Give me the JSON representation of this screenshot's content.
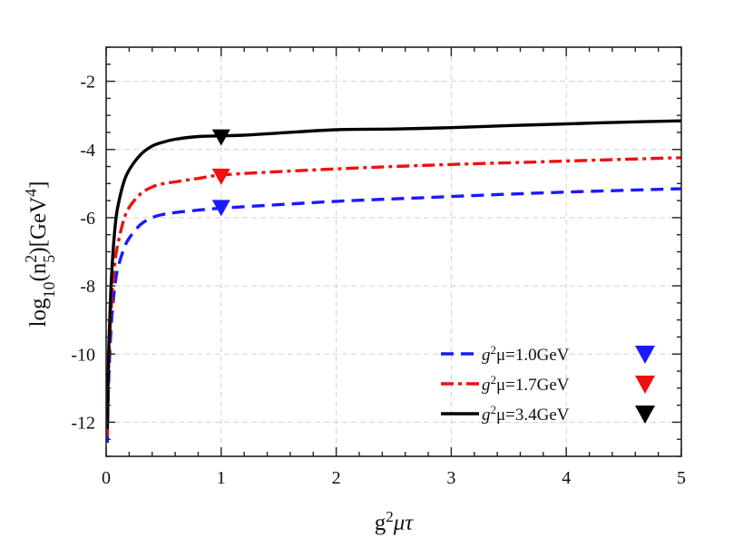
{
  "chart_data": {
    "type": "line",
    "xlabel_base": "g",
    "xlabel_sup": "2",
    "xlabel_rest": "μτ",
    "ylabel_pre": "log",
    "ylabel_sub1": "10",
    "ylabel_mid": "(n",
    "ylabel_sub2": "5",
    "ylabel_sup2": "2",
    "ylabel_post": ")[GeV",
    "ylabel_sup4": "4",
    "ylabel_end": "]",
    "xlim": [
      0,
      5
    ],
    "ylim": [
      -13,
      -1
    ],
    "x_ticks": [
      0,
      1,
      2,
      3,
      4,
      5
    ],
    "x_tick_labels": [
      "0",
      "1",
      "2",
      "3",
      "4",
      "5"
    ],
    "y_ticks": [
      -12,
      -10,
      -8,
      -6,
      -4,
      -2
    ],
    "y_tick_labels": [
      "-12",
      "-10",
      "-8",
      "-6",
      "-4",
      "-2"
    ],
    "x_minor_step": 0.2,
    "y_minor_step": 0.5,
    "grid": true,
    "legend_position": "bottom-right",
    "series": [
      {
        "name": "g²μ=1.0GeV",
        "legend_pre": "g",
        "legend_sup": "2",
        "legend_post": "μ=1.0GeV",
        "color": "#1a1aff",
        "style": "dashed",
        "x": [
          0.01,
          0.02,
          0.04,
          0.06,
          0.08,
          0.1,
          0.15,
          0.2,
          0.3,
          0.4,
          0.5,
          0.6,
          0.8,
          1.0,
          1.5,
          2.0,
          2.5,
          3.0,
          3.5,
          4.0,
          4.5,
          5.0
        ],
        "y": [
          -12.6,
          -11.0,
          -9.4,
          -8.5,
          -7.9,
          -7.5,
          -6.95,
          -6.6,
          -6.2,
          -6.0,
          -5.9,
          -5.85,
          -5.78,
          -5.72,
          -5.62,
          -5.52,
          -5.45,
          -5.38,
          -5.31,
          -5.25,
          -5.2,
          -5.15
        ]
      },
      {
        "name": "g²μ=1.7GeV",
        "legend_pre": "g",
        "legend_sup": "2",
        "legend_post": "μ=1.7GeV",
        "color": "#ee1111",
        "style": "dashdot",
        "x": [
          0.01,
          0.02,
          0.04,
          0.06,
          0.08,
          0.1,
          0.15,
          0.2,
          0.3,
          0.4,
          0.5,
          0.6,
          0.8,
          1.0,
          1.5,
          2.0,
          2.5,
          3.0,
          3.5,
          4.0,
          4.5,
          5.0
        ],
        "y": [
          -12.4,
          -10.6,
          -8.9,
          -7.9,
          -7.2,
          -6.8,
          -6.1,
          -5.7,
          -5.3,
          -5.1,
          -5.0,
          -4.95,
          -4.85,
          -4.75,
          -4.65,
          -4.57,
          -4.5,
          -4.44,
          -4.39,
          -4.34,
          -4.29,
          -4.24
        ]
      },
      {
        "name": "g²μ=3.4GeV",
        "legend_pre": "g",
        "legend_sup": "2",
        "legend_post": "μ=3.4GeV",
        "color": "#000000",
        "style": "solid",
        "x": [
          0.01,
          0.02,
          0.04,
          0.06,
          0.08,
          0.1,
          0.15,
          0.2,
          0.3,
          0.4,
          0.5,
          0.6,
          0.8,
          1.0,
          1.2,
          1.5,
          2.0,
          2.5,
          3.0,
          3.5,
          4.0,
          4.5,
          5.0
        ],
        "y": [
          -12.2,
          -10.2,
          -8.2,
          -7.0,
          -6.2,
          -5.7,
          -5.0,
          -4.6,
          -4.15,
          -3.9,
          -3.78,
          -3.7,
          -3.62,
          -3.6,
          -3.58,
          -3.52,
          -3.42,
          -3.4,
          -3.36,
          -3.3,
          -3.25,
          -3.2,
          -3.16
        ]
      }
    ],
    "markers": [
      {
        "x": 1.0,
        "y": -5.72,
        "color": "#1a1aff"
      },
      {
        "x": 1.0,
        "y": -4.8,
        "color": "#ee1111"
      },
      {
        "x": 1.0,
        "y": -3.65,
        "color": "#000000"
      }
    ]
  }
}
